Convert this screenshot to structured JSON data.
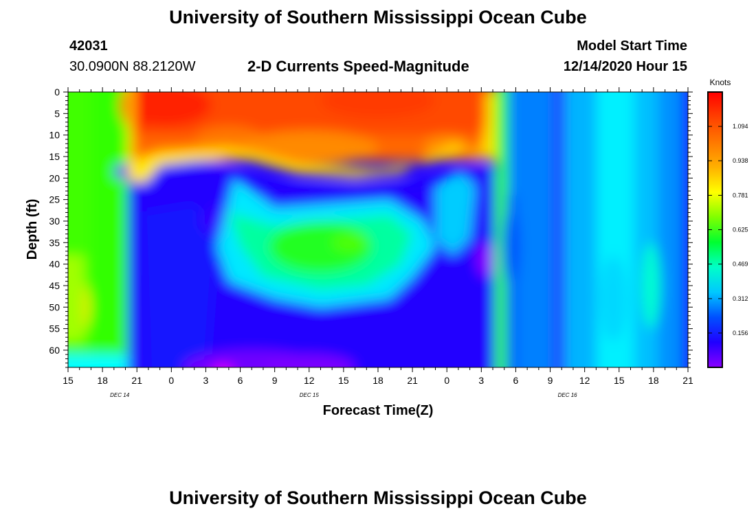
{
  "header": {
    "title": "University of Southern Mississippi Ocean Cube",
    "station_id": "42031",
    "location": "30.0900N 88.2120W",
    "model_start_label": "Model Start Time",
    "model_start_value": "12/14/2020 Hour 15"
  },
  "footer": {
    "title": "University of Southern Mississippi Ocean Cube"
  },
  "chart_data": {
    "type": "heatmap",
    "title": "2-D Currents Speed-Magnitude",
    "xlabel": "Forecast Time(Z)",
    "ylabel": "Depth (ft)",
    "x_hours_start": 0,
    "x_hours_end": 54,
    "x_tick_labels": [
      "15",
      "18",
      "21",
      "0",
      "3",
      "6",
      "9",
      "12",
      "15",
      "18",
      "21",
      "0",
      "3",
      "6",
      "9",
      "12",
      "15",
      "18",
      "21"
    ],
    "date_labels": [
      {
        "text": "DEC 14",
        "hour": 4.5
      },
      {
        "text": "DEC 15",
        "hour": 21
      },
      {
        "text": "DEC 16",
        "hour": 43.5
      }
    ],
    "y_ticks": [
      0,
      5,
      10,
      15,
      20,
      25,
      30,
      35,
      40,
      45,
      50,
      55,
      60
    ],
    "ylim": [
      0,
      64
    ],
    "colorbar": {
      "label": "Knots",
      "ticks": [
        "1.094",
        "0.938",
        "0.781",
        "0.625",
        "0.469",
        "0.312",
        "0.156"
      ],
      "tick_values": [
        1.094,
        0.938,
        0.781,
        0.625,
        0.469,
        0.312,
        0.156
      ],
      "range": [
        0.0,
        1.25
      ],
      "colors": [
        "#8a00ff",
        "#2000ff",
        "#0050ff",
        "#00c8ff",
        "#00ffc8",
        "#00ff30",
        "#80ff00",
        "#ffff00",
        "#ffb000",
        "#ff7800",
        "#ff4000",
        "#ff0000"
      ]
    }
  }
}
